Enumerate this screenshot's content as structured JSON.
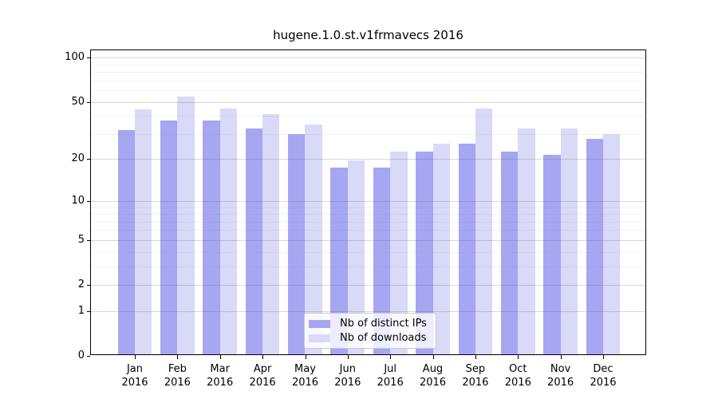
{
  "title": "hugene.1.0.st.v1frmavecs 2016",
  "colors": {
    "ips_bar": "#a6a6f3",
    "downloads_bar": "#d9d9f8",
    "frame": "#000000",
    "grid_major": "rgba(90,90,90,0.24)",
    "grid_minor": "rgba(128,128,128,0.10)"
  },
  "legend": {
    "items": [
      {
        "label": "Nb of distinct IPs",
        "color_key": "ips_bar"
      },
      {
        "label": "Nb of downloads",
        "color_key": "downloads_bar"
      }
    ]
  },
  "chart_data": {
    "type": "bar",
    "title": "hugene.1.0.st.v1frmavecs 2016",
    "scale": "log10(value+1)",
    "categories": [
      "Jan",
      "Feb",
      "Mar",
      "Apr",
      "May",
      "Jun",
      "Jul",
      "Aug",
      "Sep",
      "Oct",
      "Nov",
      "Dec"
    ],
    "year_label": "2016",
    "series": [
      {
        "name": "Nb of distinct IPs",
        "values": [
          31,
          36,
          36,
          32,
          29,
          17,
          17,
          22,
          25,
          22,
          21,
          27
        ]
      },
      {
        "name": "Nb of downloads",
        "values": [
          43,
          53,
          44,
          40,
          34,
          19,
          22,
          25,
          44,
          32,
          32,
          29
        ]
      }
    ],
    "xlabel": "",
    "ylabel": "",
    "ylim": [
      0,
      112
    ],
    "y_ticks": [
      0,
      1,
      2,
      5,
      10,
      20,
      50,
      100
    ],
    "y_minor_gridlines": [
      3,
      4,
      6,
      7,
      8,
      9,
      30,
      40,
      60,
      70,
      80,
      90
    ],
    "grid": "on",
    "legend_position": "bottom-center-inside"
  }
}
